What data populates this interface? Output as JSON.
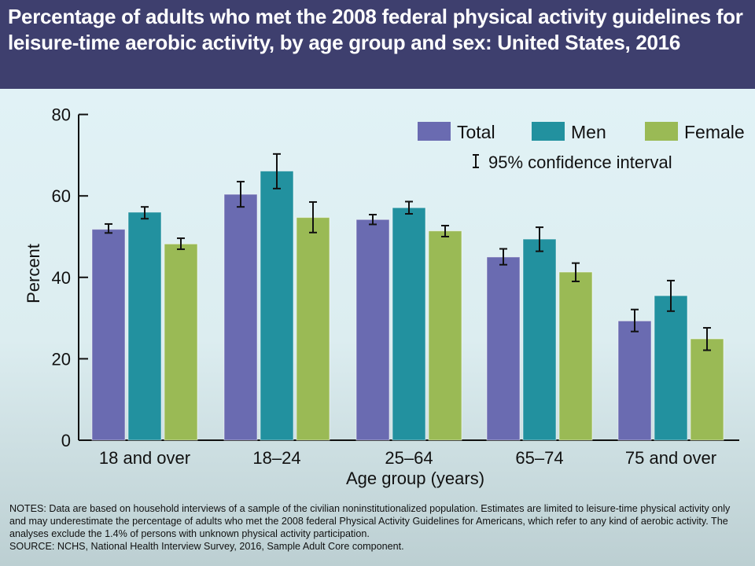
{
  "header": {
    "title": "Percentage of adults who met the 2008 federal physical activity guidelines for leisure-time aerobic activity, by age group and sex: United States, 2016"
  },
  "chart_data": {
    "type": "bar",
    "title": "Percentage of adults who met the 2008 federal physical activity guidelines for leisure-time aerobic activity, by age group and sex: United States, 2016",
    "xlabel": "Age group (years)",
    "ylabel": "Percent",
    "ylim": [
      0,
      80
    ],
    "yticks": [
      0,
      20,
      40,
      60,
      80
    ],
    "grid": false,
    "legend_position": "top-right",
    "ci_label": "95% confidence interval",
    "categories": [
      "18 and over",
      "18–24",
      "25–64",
      "65–74",
      "75 and over"
    ],
    "series": [
      {
        "name": "Total",
        "color": "#6a6bb1",
        "values": [
          51.8,
          60.4,
          54.2,
          45.0,
          29.3
        ],
        "ci_low": [
          50.9,
          57.3,
          53.0,
          43.1,
          26.7
        ],
        "ci_high": [
          53.1,
          63.5,
          55.4,
          47.0,
          32.1
        ]
      },
      {
        "name": "Men",
        "color": "#22919f",
        "values": [
          56.0,
          66.1,
          57.1,
          49.4,
          35.5
        ],
        "ci_low": [
          54.4,
          61.8,
          55.6,
          46.4,
          31.7
        ],
        "ci_high": [
          57.3,
          70.3,
          58.6,
          52.3,
          39.2
        ]
      },
      {
        "name": "Female",
        "color": "#9aba55",
        "values": [
          48.2,
          54.7,
          51.4,
          41.3,
          24.9
        ],
        "ci_low": [
          46.9,
          51.0,
          50.0,
          39.0,
          22.1
        ],
        "ci_high": [
          49.6,
          58.5,
          52.7,
          43.5,
          27.6
        ]
      }
    ]
  },
  "notes": {
    "text": "NOTES: Data are based on household interviews of a sample of the civilian noninstitutionalized population. Estimates are limited to leisure-time physical activity only and may underestimate the percentage of adults who met the 2008 federal Physical Activity Guidelines for Americans, which refer to any kind of aerobic activity. The analyses exclude the 1.4% of persons with unknown physical activity participation.",
    "source": "SOURCE: NCHS, National Health Interview Survey, 2016, Sample Adult Core component."
  }
}
